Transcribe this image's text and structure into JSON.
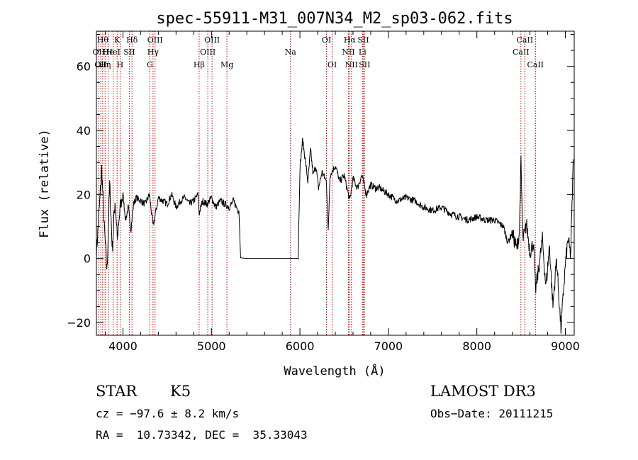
{
  "chart_data": {
    "type": "line",
    "title": "spec-55911-M31_007N34_M2_sp03-062.fits",
    "xlabel": "Wavelength (Å)",
    "ylabel": "Flux (relative)",
    "xlim": [
      3700,
      9100
    ],
    "ylim": [
      -24,
      71
    ],
    "xticks": [
      4000,
      5000,
      6000,
      7000,
      8000,
      9000
    ],
    "yticks": [
      -20,
      0,
      20,
      40,
      60
    ],
    "grid": false,
    "series": [
      {
        "x": [
          3700,
          3730,
          3760,
          3790,
          3820,
          3850,
          3880,
          3910,
          3940,
          3970,
          4000,
          4030,
          4060,
          4090,
          4120,
          4150,
          4200,
          4250,
          4300,
          4340,
          4400,
          4450,
          4500,
          4550,
          4600,
          4650,
          4700,
          4750,
          4800,
          4850,
          4861,
          4900,
          4950,
          5000,
          5050,
          5100,
          5150,
          5200,
          5250,
          5300,
          5310,
          5330,
          5400,
          5600,
          5800,
          5960,
          5980,
          6000,
          6030,
          6060,
          6090,
          6120,
          6150,
          6180,
          6210,
          6250,
          6300,
          6320,
          6340,
          6400,
          6450,
          6500,
          6563,
          6600,
          6650,
          6700,
          6750,
          6800,
          6850,
          6900,
          7000,
          7100,
          7200,
          7300,
          7400,
          7500,
          7600,
          7700,
          7800,
          7900,
          8000,
          8100,
          8200,
          8300,
          8350,
          8400,
          8450,
          8480,
          8498,
          8520,
          8542,
          8560,
          8600,
          8640,
          8662,
          8700,
          8740,
          8780,
          8820,
          8860,
          8900,
          8950,
          9000,
          9030,
          9060,
          9090
        ],
        "values": [
          2,
          14,
          28,
          9,
          -4,
          23,
          3,
          18,
          6,
          16,
          20,
          12,
          16,
          9,
          17,
          19,
          18,
          17,
          20,
          10,
          19,
          18,
          17,
          20,
          16,
          18,
          19,
          17,
          18,
          20,
          14,
          18,
          17,
          19,
          16,
          18,
          17,
          16,
          18,
          15,
          15,
          0.2,
          0,
          0,
          0,
          0,
          0,
          28,
          37,
          31,
          24,
          34,
          26,
          29,
          22,
          27,
          24,
          8,
          26,
          29,
          24,
          26,
          18,
          25,
          22,
          26,
          20,
          23,
          22,
          22,
          20,
          18,
          19,
          18,
          16,
          15,
          16,
          14,
          13,
          12,
          13,
          12,
          12,
          10,
          5,
          8,
          3,
          8,
          30,
          6,
          8,
          11,
          2,
          5,
          -10,
          -3,
          6,
          -9,
          4,
          -15,
          0,
          -22,
          -2,
          6,
          1,
          31
        ]
      }
    ],
    "lines": [
      {
        "x": 3727,
        "label": "OII",
        "row": 2
      },
      {
        "x": 3750,
        "label": "OII",
        "row": 3
      },
      {
        "x": 3771,
        "label": "Hθ",
        "row": 1
      },
      {
        "x": 3798,
        "label": "Hη",
        "row": 3
      },
      {
        "x": 3835,
        "label": "He",
        "row": 2
      },
      {
        "x": 3889,
        "label": "HeI",
        "row": 2
      },
      {
        "x": 3934,
        "label": "K",
        "row": 1
      },
      {
        "x": 3968,
        "label": "H",
        "row": 3
      },
      {
        "x": 4072,
        "label": "SII",
        "row": 2
      },
      {
        "x": 4102,
        "label": "Hδ",
        "row": 1
      },
      {
        "x": 4304,
        "label": "G",
        "row": 3
      },
      {
        "x": 4340,
        "label": "Hγ",
        "row": 2
      },
      {
        "x": 4363,
        "label": "OIII",
        "row": 1
      },
      {
        "x": 4861,
        "label": "Hβ",
        "row": 3
      },
      {
        "x": 4959,
        "label": "OIII",
        "row": 2
      },
      {
        "x": 5007,
        "label": "OIII",
        "row": 1
      },
      {
        "x": 5175,
        "label": "Mg",
        "row": 3
      },
      {
        "x": 5893,
        "label": "Na",
        "row": 2
      },
      {
        "x": 6300,
        "label": "OI",
        "row": 1
      },
      {
        "x": 6364,
        "label": "OI",
        "row": 3
      },
      {
        "x": 6548,
        "label": "NII",
        "row": 2
      },
      {
        "x": 6563,
        "label": "Hα",
        "row": 1
      },
      {
        "x": 6583,
        "label": "NII",
        "row": 3
      },
      {
        "x": 6707,
        "label": "Li",
        "row": 2
      },
      {
        "x": 6716,
        "label": "SII",
        "row": 1
      },
      {
        "x": 6731,
        "label": "SII",
        "row": 3
      },
      {
        "x": 8498,
        "label": "CaII",
        "row": 2
      },
      {
        "x": 8542,
        "label": "CaII",
        "row": 1
      },
      {
        "x": 8662,
        "label": "CaII",
        "row": 3
      }
    ]
  },
  "info": {
    "class": "STAR",
    "subclass": "K5",
    "survey": "LAMOST DR3",
    "cz": "cz = −97.6 ± 8.2 km/s",
    "obsdate": "Obs−Date: 20111215",
    "radec": "RA =  10.73342, DEC =  35.33043"
  }
}
